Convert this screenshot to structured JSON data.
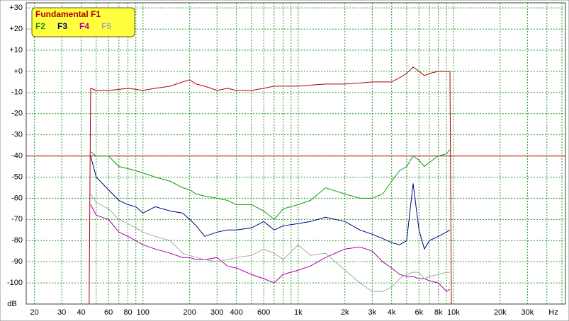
{
  "chart_data": {
    "type": "line",
    "x_unit": "Hz",
    "y_unit": "dB",
    "log_x": true,
    "grid": true,
    "legend": "top-left",
    "reference_line": {
      "value": -40,
      "color": "#c00000"
    },
    "xlim": [
      17.7,
      52700
    ],
    "ylim": [
      -110,
      32.4
    ],
    "xticks": [
      20,
      30,
      40,
      60,
      80,
      100,
      200,
      300,
      400,
      600,
      {
        "value": 1000,
        "label": "1k"
      },
      {
        "value": 2000,
        "label": "2k"
      },
      {
        "value": 3000,
        "label": "3k"
      },
      {
        "value": 4000,
        "label": "4k"
      },
      {
        "value": 6000,
        "label": "6k"
      },
      {
        "value": 8000,
        "label": "8k"
      },
      {
        "value": 10000,
        "label": "10k"
      },
      {
        "value": 20000,
        "label": "20k"
      },
      {
        "value": 30000,
        "label": "30k"
      }
    ],
    "xgrid": [
      20,
      30,
      40,
      50,
      60,
      70,
      80,
      90,
      100,
      200,
      300,
      400,
      500,
      600,
      700,
      800,
      900,
      1000,
      2000,
      3000,
      4000,
      5000,
      6000,
      7000,
      8000,
      9000,
      10000,
      20000,
      30000,
      40000,
      50000
    ],
    "yticks": [
      {
        "value": 30,
        "label": "+30"
      },
      {
        "value": 20,
        "label": "+20"
      },
      {
        "value": 10,
        "label": "+10"
      },
      {
        "value": 0,
        "label": "+0"
      },
      -10,
      -20,
      -30,
      -40,
      -50,
      -60,
      -70,
      -80,
      -90,
      -100
    ],
    "x": [
      45,
      46,
      50,
      60,
      70,
      80,
      90,
      100,
      120,
      150,
      180,
      200,
      220,
      250,
      300,
      350,
      400,
      500,
      600,
      700,
      800,
      1000,
      1200,
      1500,
      2000,
      2500,
      3000,
      3500,
      4000,
      4500,
      5000,
      5500,
      6000,
      6500,
      7000,
      8000,
      9000,
      9500,
      9700
    ],
    "series": [
      {
        "name": "Fundamental F1",
        "color": "#b00000",
        "values": [
          -110,
          -8,
          -9,
          -9,
          -8.5,
          -8,
          -8.5,
          -9,
          -8,
          -7,
          -5,
          -4,
          -6,
          -7,
          -9,
          -8,
          -9,
          -9,
          -8,
          -7,
          -7,
          -7,
          -6.5,
          -6,
          -6,
          -5.5,
          -5,
          -5,
          -5,
          -3,
          -1,
          2,
          0,
          -2,
          -1,
          0,
          0,
          0,
          -110
        ]
      },
      {
        "name": "F2",
        "color": "#119911",
        "values": [
          null,
          -38,
          -40,
          -40,
          -45,
          -46,
          -47,
          -48,
          -50,
          -52,
          -55,
          -56,
          -58,
          -59,
          -60,
          -61,
          -63,
          -63,
          -66,
          -70,
          -65,
          -63,
          -61,
          -55,
          -58,
          -60,
          -60,
          -58,
          -52,
          -47,
          -45,
          -40,
          -42,
          -45,
          -43,
          -40,
          -39,
          -37,
          null
        ]
      },
      {
        "name": "F3",
        "color": "#000080",
        "values": [
          null,
          -40,
          -50,
          -56,
          -61,
          -63,
          -64,
          -67,
          -64,
          -66,
          -67,
          -70,
          -73,
          -78,
          -76,
          -75,
          -75,
          -74,
          -71,
          -75,
          -73,
          -72,
          -71,
          -69,
          -71,
          -75,
          -77,
          -79,
          -81,
          -82,
          -80,
          -53,
          -75,
          -84,
          -80,
          -78,
          -76,
          -75,
          null
        ]
      },
      {
        "name": "F4",
        "color": "#aa00aa",
        "values": [
          null,
          -63,
          -68,
          -70,
          -76,
          -78,
          -80,
          -82,
          -84,
          -86,
          -88,
          -88,
          -89,
          -89,
          -88,
          -92,
          -93,
          -96,
          -98,
          -100,
          -96,
          -94,
          -92,
          -88,
          -84,
          -83,
          -85,
          -90,
          -93,
          -96,
          -97,
          -97,
          -98,
          -98,
          -99,
          -100,
          -104,
          -103,
          null
        ]
      },
      {
        "name": "F5",
        "color": "#a8a8a8",
        "values": [
          null,
          -58,
          -62,
          -65,
          -70,
          -72,
          -74,
          -76,
          -78,
          -80,
          -86,
          -87,
          -88,
          -89,
          -90,
          -89,
          -88,
          -87,
          -84,
          -86,
          -89,
          -82,
          -87,
          -86,
          -94,
          -100,
          -104,
          -104,
          -102,
          -98,
          -96,
          -95,
          -95,
          -98,
          -97,
          -96,
          -95,
          -95,
          null
        ]
      }
    ]
  }
}
